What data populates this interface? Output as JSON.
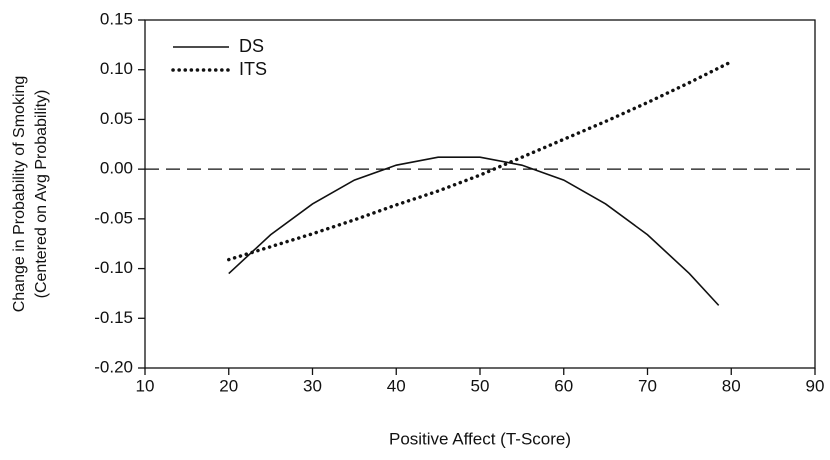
{
  "chart_data": {
    "type": "line",
    "xlabel": "Positive Affect (T-Score)",
    "ylabel": [
      "Change in Probability of Smoking",
      "(Centered on Avg Probability)"
    ],
    "xlim": [
      10,
      90
    ],
    "xticks": [
      10,
      20,
      30,
      40,
      50,
      60,
      70,
      80,
      90
    ],
    "ylim": [
      -0.2,
      0.15
    ],
    "yticks": [
      {
        "value": -0.2,
        "label": "-0.20"
      },
      {
        "value": -0.15,
        "label": "-0.15"
      },
      {
        "value": -0.1,
        "label": "-0.10"
      },
      -0.05,
      {
        "value": 0,
        "label": "0.00"
      },
      0.05,
      {
        "value": 0.1,
        "label": "0.10"
      },
      0.15
    ],
    "reference_line": 0,
    "legend": "upper left",
    "series": [
      {
        "name": "DS",
        "color": "#111111",
        "style": "solid",
        "x": [
          20,
          25,
          30,
          35,
          40,
          45,
          50,
          55,
          60,
          65,
          70,
          75,
          78.5
        ],
        "values": [
          -0.105,
          -0.066,
          -0.035,
          -0.011,
          0.004,
          0.012,
          0.012,
          0.004,
          -0.011,
          -0.035,
          -0.066,
          -0.105,
          -0.137
        ]
      },
      {
        "name": "ITS",
        "color": "#111111",
        "style": "dotted",
        "x": [
          20,
          25,
          30,
          35,
          40,
          45,
          50,
          55,
          60,
          65,
          70,
          75,
          80
        ],
        "values": [
          -0.091,
          -0.078,
          -0.065,
          -0.051,
          -0.036,
          -0.022,
          -0.006,
          0.012,
          0.03,
          0.048,
          0.067,
          0.087,
          0.108
        ]
      }
    ]
  }
}
